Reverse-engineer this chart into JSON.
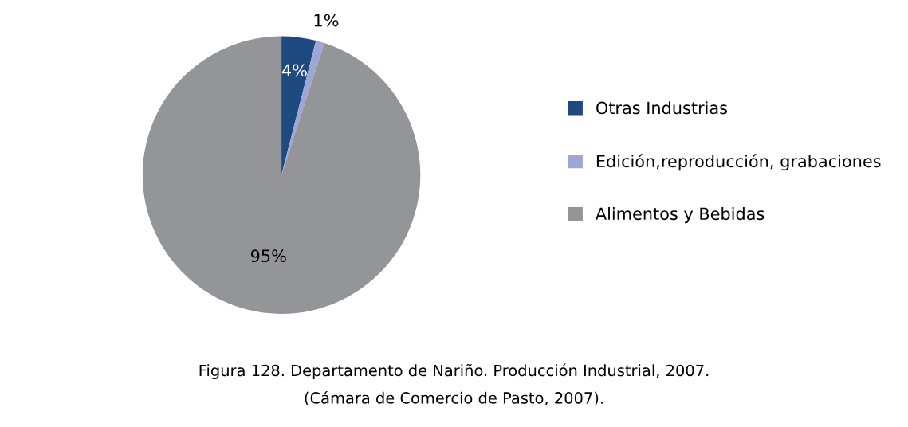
{
  "chart_data": {
    "type": "pie",
    "categories": [
      "Otras Industrias",
      "Edición,reproducción, grabaciones",
      "Alimentos y Bebidas"
    ],
    "values": [
      4,
      1,
      95
    ],
    "colors": [
      "#1f4a80",
      "#9ea6d6",
      "#939598"
    ],
    "value_labels": [
      "4%",
      "1%",
      "95%"
    ],
    "legend": "right",
    "annotations": [
      "Figura 128. Departamento de Nariño. Producción Industrial, 2007.",
      "(Cámara de Comercio de Pasto, 2007)."
    ]
  }
}
